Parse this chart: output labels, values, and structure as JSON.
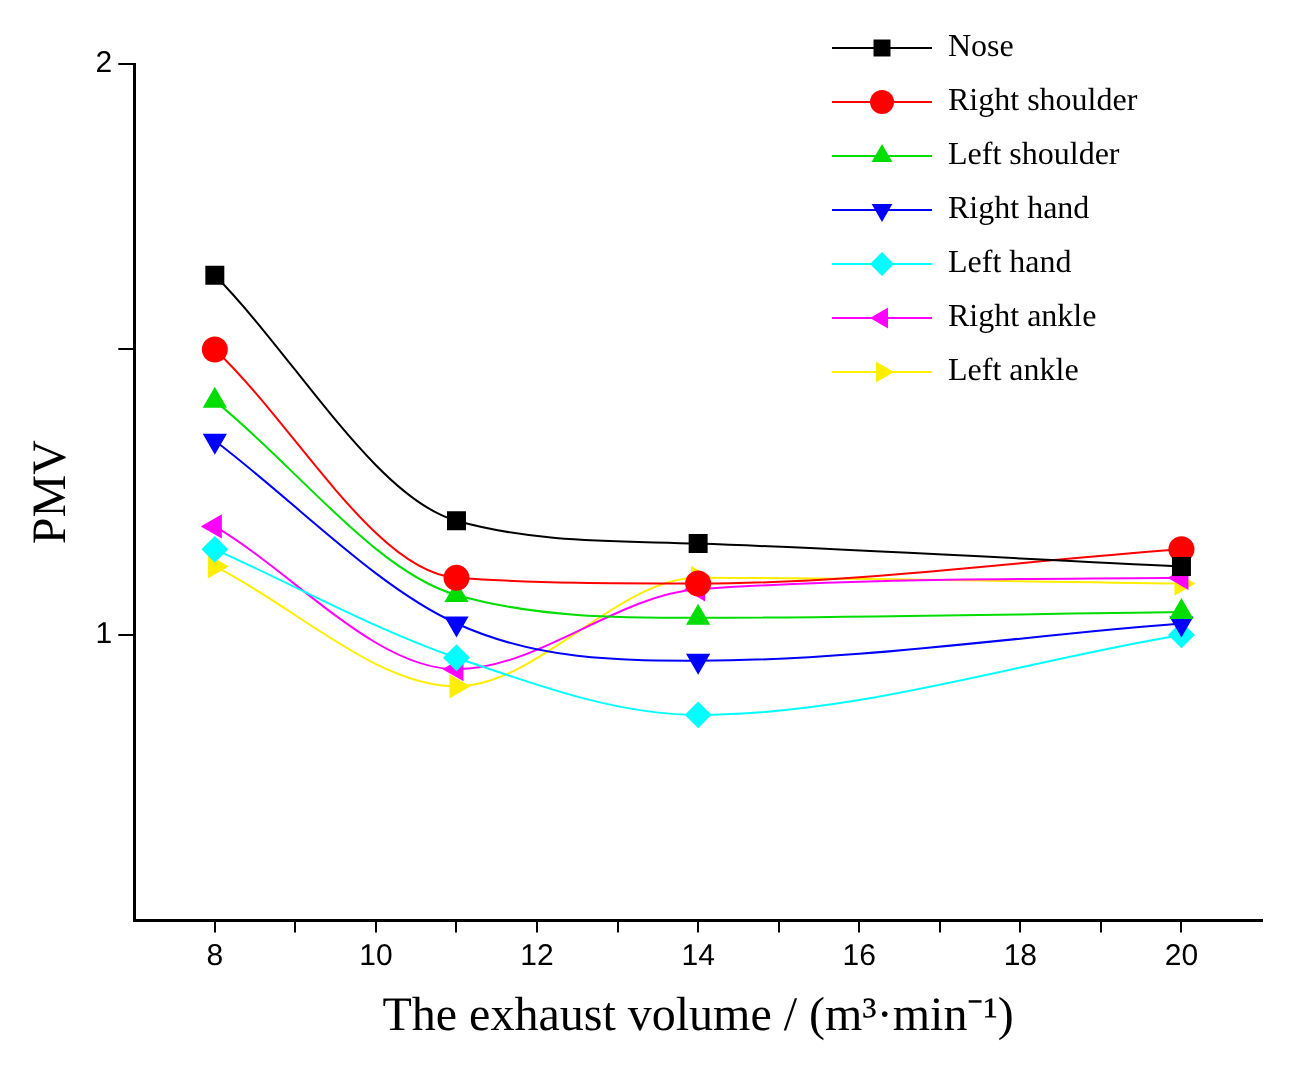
{
  "chart_data": {
    "type": "line",
    "xlabel": "The exhaust volume / (m³·min⁻¹)",
    "ylabel": "PMV",
    "x": [
      8,
      11,
      14,
      20
    ],
    "xlim": [
      7,
      21
    ],
    "xticks": [
      8,
      {
        "value": 9,
        "label": null
      },
      10,
      {
        "value": 11,
        "label": null
      },
      12,
      {
        "value": 13,
        "label": null
      },
      14,
      {
        "value": 15,
        "label": null
      },
      16,
      {
        "value": 17,
        "label": null
      },
      18,
      {
        "value": 19,
        "label": null
      },
      20
    ],
    "ylim": [
      0.5,
      2
    ],
    "yticks": [
      1,
      {
        "value": 1.5,
        "label": null
      },
      2
    ],
    "grid": false,
    "legend": "top right",
    "line_style": "solid",
    "series": [
      {
        "name": "Nose",
        "color": "#000000",
        "marker": "square",
        "values": [
          1.63,
          1.2,
          1.16,
          1.12
        ]
      },
      {
        "name": "Right shoulder",
        "color": "#ff0000",
        "marker": "circle",
        "values": [
          1.5,
          1.1,
          1.09,
          1.15
        ]
      },
      {
        "name": "Left shoulder",
        "color": "#00dd00",
        "marker": "triangle",
        "values": [
          1.41,
          1.07,
          1.03,
          1.04
        ]
      },
      {
        "name": "Right hand",
        "color": "#0000ff",
        "marker": "triangle-down",
        "values": [
          1.34,
          1.02,
          0.955,
          1.02
        ]
      },
      {
        "name": "Left hand",
        "color": "#00ffff",
        "marker": "diamond",
        "values": [
          1.15,
          0.96,
          0.86,
          1.0
        ]
      },
      {
        "name": "Right ankle",
        "color": "#ff00ff",
        "marker": "triangle-left",
        "values": [
          1.19,
          0.94,
          1.08,
          1.1
        ]
      },
      {
        "name": "Left ankle",
        "color": "#ffee00",
        "marker": "triangle-right",
        "values": [
          1.12,
          0.91,
          1.1,
          1.09
        ]
      }
    ]
  }
}
